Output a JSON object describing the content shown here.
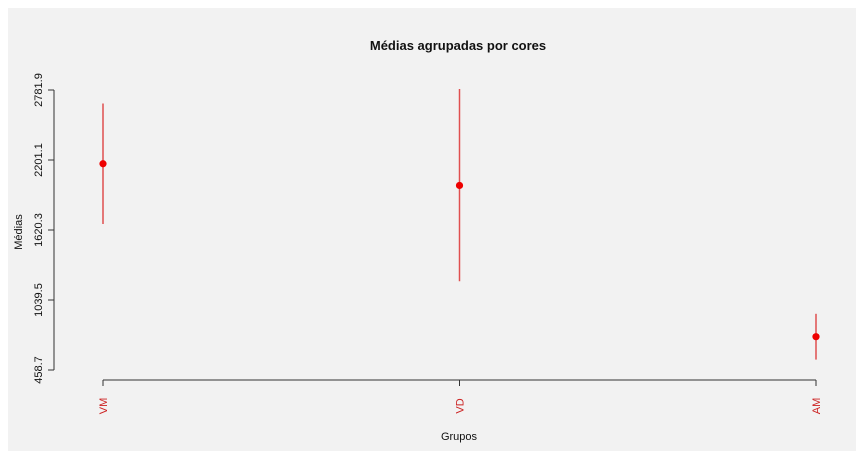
{
  "chart_data": {
    "type": "scatter",
    "title": "Médias agrupadas por cores",
    "xlabel": "Grupos",
    "ylabel": "Médias",
    "categories": [
      "VM",
      "VD",
      "AM"
    ],
    "values": [
      2170,
      1990,
      735
    ],
    "error_low": [
      1670,
      1195,
      545
    ],
    "error_high": [
      2670,
      2790,
      925
    ],
    "y_ticks": [
      "458.7",
      "1039.5",
      "1620.3",
      "2201.1",
      "2781.9"
    ],
    "ylim": [
      458.7,
      2781.9
    ],
    "grid": false,
    "colors": {
      "point": "#ee0000",
      "error_bar": "#e05050",
      "category_label": "#cc2222",
      "background": "#f2f2f2"
    }
  }
}
